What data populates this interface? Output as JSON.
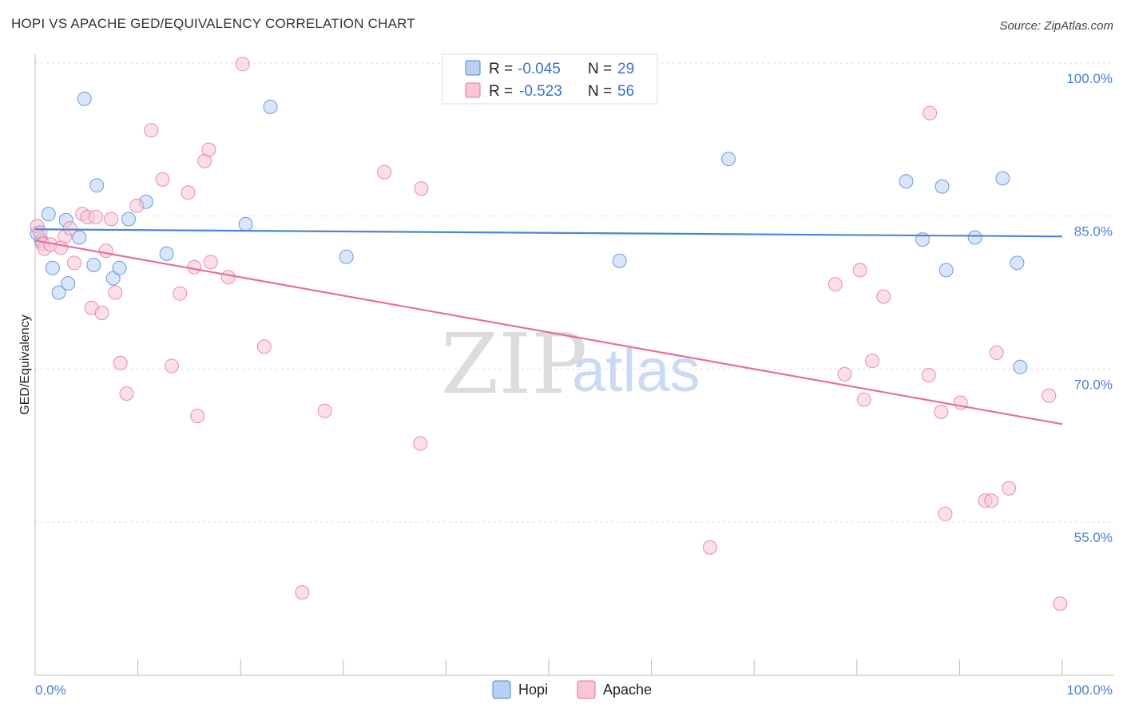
{
  "title": "HOPI VS APACHE GED/EQUIVALENCY CORRELATION CHART",
  "source": "Source: ZipAtlas.com",
  "watermark": {
    "zip": "ZIP",
    "atlas": "atlas"
  },
  "chart_data": {
    "type": "scatter",
    "title": "HOPI VS APACHE GED/EQUIVALENCY CORRELATION CHART",
    "xlabel": "",
    "ylabel": "GED/Equivalency",
    "xlim": [
      0,
      100
    ],
    "ylim": [
      40,
      102
    ],
    "x_tick_labels": [
      {
        "value": 0,
        "label": "0.0%"
      },
      {
        "value": 100,
        "label": "100.0%"
      }
    ],
    "y_ticks": [
      {
        "value": 100,
        "label": "100.0%"
      },
      {
        "value": 85,
        "label": "85.0%"
      },
      {
        "value": 70,
        "label": "70.0%"
      },
      {
        "value": 55,
        "label": "55.0%"
      }
    ],
    "grid": "horizontal dashed",
    "legend_position": "top-center",
    "series": [
      {
        "name": "Hopi",
        "color": "#4a86d8",
        "fill": "#b9d0f2",
        "R": "-0.045",
        "N": "29",
        "trend": {
          "x": [
            0,
            100
          ],
          "y": [
            83.7,
            83.0
          ]
        },
        "points": [
          {
            "x": 0.6,
            "y": 82.6
          },
          {
            "x": 1.3,
            "y": 85.2
          },
          {
            "x": 1.7,
            "y": 79.9
          },
          {
            "x": 2.3,
            "y": 77.5
          },
          {
            "x": 3.0,
            "y": 84.6
          },
          {
            "x": 3.2,
            "y": 78.4
          },
          {
            "x": 4.3,
            "y": 82.9
          },
          {
            "x": 4.8,
            "y": 96.5
          },
          {
            "x": 5.7,
            "y": 80.2
          },
          {
            "x": 6.0,
            "y": 88.0
          },
          {
            "x": 7.6,
            "y": 78.9
          },
          {
            "x": 8.2,
            "y": 79.9
          },
          {
            "x": 9.1,
            "y": 84.7
          },
          {
            "x": 10.8,
            "y": 86.4
          },
          {
            "x": 12.8,
            "y": 81.3
          },
          {
            "x": 20.5,
            "y": 84.2
          },
          {
            "x": 22.9,
            "y": 95.7
          },
          {
            "x": 30.3,
            "y": 81.0
          },
          {
            "x": 56.9,
            "y": 80.6
          },
          {
            "x": 67.5,
            "y": 90.6
          },
          {
            "x": 84.8,
            "y": 88.4
          },
          {
            "x": 86.4,
            "y": 82.7
          },
          {
            "x": 88.3,
            "y": 87.9
          },
          {
            "x": 88.7,
            "y": 79.7
          },
          {
            "x": 91.5,
            "y": 82.9
          },
          {
            "x": 94.2,
            "y": 88.7
          },
          {
            "x": 95.6,
            "y": 80.4
          },
          {
            "x": 95.9,
            "y": 70.2
          },
          {
            "x": 0.2,
            "y": 83.3
          }
        ]
      },
      {
        "name": "Apache",
        "color": "#e6709a",
        "fill": "#f8c6d6",
        "R": "-0.523",
        "N": "56",
        "trend": {
          "x": [
            0,
            100
          ],
          "y": [
            82.6,
            64.6
          ]
        },
        "points": [
          {
            "x": 0.2,
            "y": 84.0
          },
          {
            "x": 0.5,
            "y": 83.4
          },
          {
            "x": 0.7,
            "y": 82.3
          },
          {
            "x": 0.9,
            "y": 81.8
          },
          {
            "x": 1.5,
            "y": 82.2
          },
          {
            "x": 2.5,
            "y": 81.9
          },
          {
            "x": 2.9,
            "y": 83.0
          },
          {
            "x": 3.4,
            "y": 83.8
          },
          {
            "x": 3.8,
            "y": 80.4
          },
          {
            "x": 4.6,
            "y": 85.2
          },
          {
            "x": 5.1,
            "y": 84.9
          },
          {
            "x": 5.5,
            "y": 76.0
          },
          {
            "x": 5.9,
            "y": 84.9
          },
          {
            "x": 6.5,
            "y": 75.5
          },
          {
            "x": 6.9,
            "y": 81.6
          },
          {
            "x": 7.4,
            "y": 84.7
          },
          {
            "x": 7.8,
            "y": 77.5
          },
          {
            "x": 8.3,
            "y": 70.6
          },
          {
            "x": 8.9,
            "y": 67.6
          },
          {
            "x": 9.9,
            "y": 86.0
          },
          {
            "x": 11.3,
            "y": 93.4
          },
          {
            "x": 12.4,
            "y": 88.6
          },
          {
            "x": 13.3,
            "y": 70.3
          },
          {
            "x": 14.1,
            "y": 77.4
          },
          {
            "x": 14.9,
            "y": 87.3
          },
          {
            "x": 15.5,
            "y": 80.0
          },
          {
            "x": 15.8,
            "y": 65.4
          },
          {
            "x": 16.5,
            "y": 90.4
          },
          {
            "x": 16.9,
            "y": 91.5
          },
          {
            "x": 17.1,
            "y": 80.5
          },
          {
            "x": 18.8,
            "y": 79.0
          },
          {
            "x": 20.2,
            "y": 99.9
          },
          {
            "x": 22.3,
            "y": 72.2
          },
          {
            "x": 26.0,
            "y": 48.1
          },
          {
            "x": 28.2,
            "y": 65.9
          },
          {
            "x": 34.0,
            "y": 89.3
          },
          {
            "x": 37.5,
            "y": 62.7
          },
          {
            "x": 37.6,
            "y": 87.7
          },
          {
            "x": 65.7,
            "y": 52.5
          },
          {
            "x": 77.9,
            "y": 78.3
          },
          {
            "x": 78.8,
            "y": 69.5
          },
          {
            "x": 80.3,
            "y": 79.7
          },
          {
            "x": 80.7,
            "y": 67.0
          },
          {
            "x": 81.5,
            "y": 70.8
          },
          {
            "x": 82.6,
            "y": 77.1
          },
          {
            "x": 87.1,
            "y": 95.1
          },
          {
            "x": 87.0,
            "y": 69.4
          },
          {
            "x": 88.2,
            "y": 65.8
          },
          {
            "x": 88.6,
            "y": 55.8
          },
          {
            "x": 90.1,
            "y": 66.7
          },
          {
            "x": 92.5,
            "y": 57.1
          },
          {
            "x": 93.1,
            "y": 57.1
          },
          {
            "x": 93.6,
            "y": 71.6
          },
          {
            "x": 94.8,
            "y": 58.3
          },
          {
            "x": 98.7,
            "y": 67.4
          },
          {
            "x": 99.8,
            "y": 47.0
          }
        ]
      }
    ]
  },
  "legend": {
    "r_label": "R =",
    "n_label": "N =",
    "hopi": {
      "r": "-0.045",
      "n": "29"
    },
    "apache": {
      "r": "-0.523",
      "n": "56"
    }
  },
  "bottom_legend": [
    "Hopi",
    "Apache"
  ]
}
